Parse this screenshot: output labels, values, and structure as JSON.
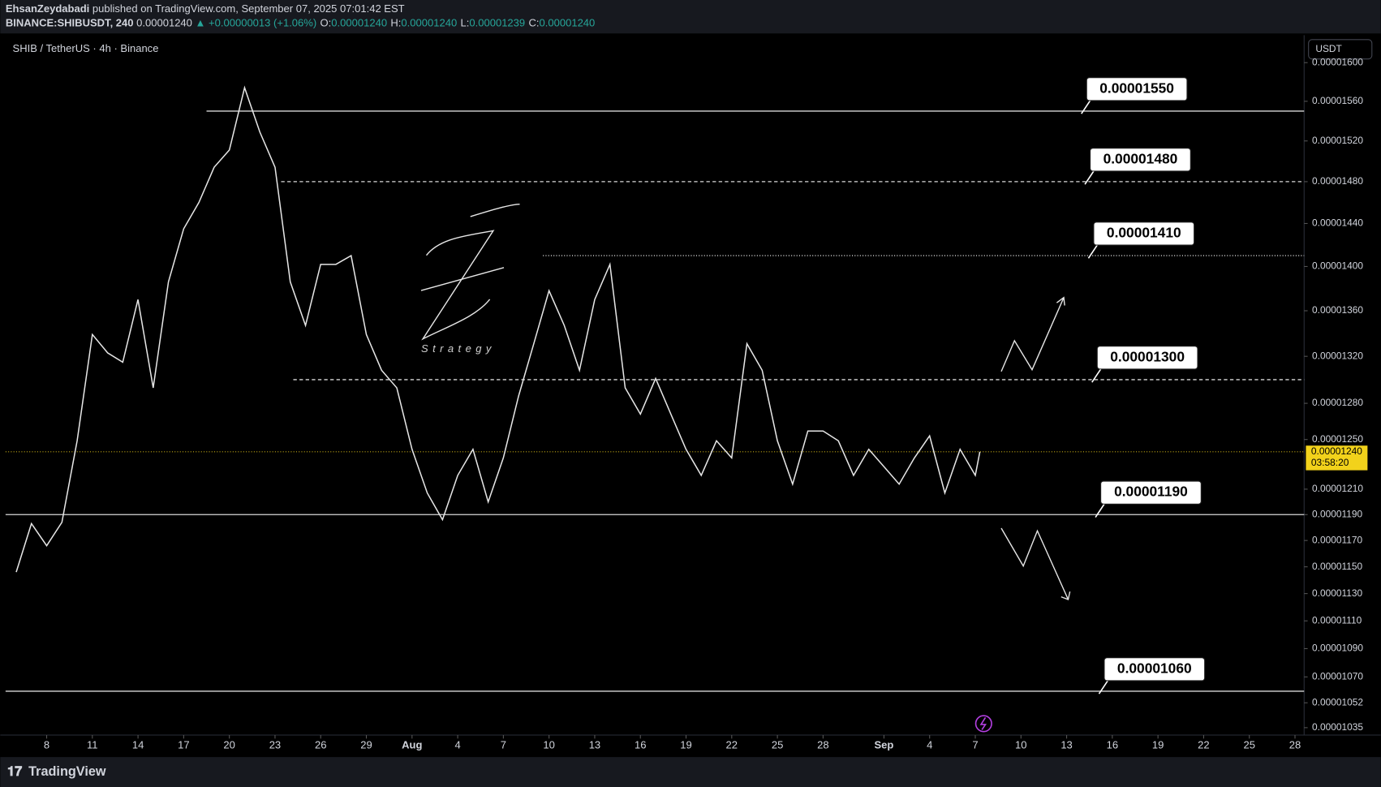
{
  "header": {
    "author": "EhsanZeydabadi",
    "published": "published on TradingView.com, September 07, 2025 07:01:42 EST",
    "symbol": "BINANCE:SHIBUSDT, 240",
    "last": "0.00001240",
    "change": "▲ +0.00000013 (+1.06%)",
    "ohlc": [
      "O:",
      "0.00001240",
      "H:",
      "0.00001240",
      "L:",
      "0.00001239",
      "C:",
      "0.00001240"
    ]
  },
  "footer": {
    "brand": "TradingView"
  },
  "chart_data": {
    "type": "line",
    "title": "SHIB / TetherUS · 4h · Binance",
    "currency": "USDT",
    "log_scale": true,
    "grid": false,
    "x": [
      -2,
      -1,
      0,
      1,
      2,
      3,
      4,
      5,
      6,
      7,
      8,
      9,
      10,
      11,
      12,
      13,
      14,
      15,
      16,
      17,
      18,
      19,
      20,
      21,
      22,
      23,
      24,
      25,
      26,
      27,
      28,
      29,
      30,
      31,
      32,
      33,
      34,
      35,
      36,
      37,
      38,
      39,
      40,
      41,
      42,
      43,
      44,
      45,
      46,
      47,
      48,
      49,
      50,
      51,
      52,
      53,
      54,
      55,
      56,
      57,
      58,
      59,
      60,
      61,
      61.3
    ],
    "series": [
      {
        "name": "SHIBUSDT",
        "color": "#e6e6e6",
        "values": [
          1.146e-05,
          1.183e-05,
          1.166e-05,
          1.184e-05,
          1.249e-05,
          1.339e-05,
          1.323e-05,
          1.315e-05,
          1.37e-05,
          1.293e-05,
          1.386e-05,
          1.435e-05,
          1.46e-05,
          1.494e-05,
          1.511e-05,
          1.574e-05,
          1.529e-05,
          1.494e-05,
          1.386e-05,
          1.347e-05,
          1.402e-05,
          1.402e-05,
          1.41e-05,
          1.339e-05,
          1.308e-05,
          1.293e-05,
          1.242e-05,
          1.207e-05,
          1.186e-05,
          1.221e-05,
          1.242e-05,
          1.2e-05,
          1.235e-05,
          1.286e-05,
          1.331e-05,
          1.378e-05,
          1.347e-05,
          1.308e-05,
          1.37e-05,
          1.402e-05,
          1.293e-05,
          1.271e-05,
          1.301e-05,
          1.271e-05,
          1.242e-05,
          1.221e-05,
          1.249e-05,
          1.235e-05,
          1.331e-05,
          1.308e-05,
          1.249e-05,
          1.214e-05,
          1.257e-05,
          1.257e-05,
          1.249e-05,
          1.221e-05,
          1.242e-05,
          1.228e-05,
          1.214e-05,
          1.235e-05,
          1.253e-05,
          1.207e-05,
          1.242e-05,
          1.221e-05,
          1.24e-05
        ]
      }
    ],
    "xlim": [
      -2.7,
      82.6
    ],
    "xticks": [
      {
        "value": 0,
        "label": "8"
      },
      {
        "value": 3,
        "label": "11"
      },
      {
        "value": 6,
        "label": "14"
      },
      {
        "value": 9,
        "label": "17"
      },
      {
        "value": 12,
        "label": "20"
      },
      {
        "value": 15,
        "label": "23"
      },
      {
        "value": 18,
        "label": "26"
      },
      {
        "value": 21,
        "label": "29"
      },
      {
        "value": 24,
        "label": "Aug"
      },
      {
        "value": 27,
        "label": "4"
      },
      {
        "value": 30,
        "label": "7"
      },
      {
        "value": 33,
        "label": "10"
      },
      {
        "value": 36,
        "label": "13"
      },
      {
        "value": 39,
        "label": "16"
      },
      {
        "value": 42,
        "label": "19"
      },
      {
        "value": 45,
        "label": "22"
      },
      {
        "value": 48,
        "label": "25"
      },
      {
        "value": 51,
        "label": "28"
      },
      {
        "value": 55,
        "label": "Sep"
      },
      {
        "value": 58,
        "label": "4"
      },
      {
        "value": 61,
        "label": "7"
      },
      {
        "value": 64,
        "label": "10"
      },
      {
        "value": 67,
        "label": "13"
      },
      {
        "value": 70,
        "label": "16"
      },
      {
        "value": 73,
        "label": "19"
      },
      {
        "value": 76,
        "label": "22"
      },
      {
        "value": 79,
        "label": "25"
      },
      {
        "value": 82,
        "label": "28"
      }
    ],
    "ylim": [
      1.03e-05,
      1.629e-05
    ],
    "yticks": [
      {
        "value": 1.6e-05,
        "label": "0.00001600"
      },
      {
        "value": 1.56e-05,
        "label": "0.00001560"
      },
      {
        "value": 1.52e-05,
        "label": "0.00001520"
      },
      {
        "value": 1.48e-05,
        "label": "0.00001480"
      },
      {
        "value": 1.44e-05,
        "label": "0.00001440"
      },
      {
        "value": 1.4e-05,
        "label": "0.00001400"
      },
      {
        "value": 1.36e-05,
        "label": "0.00001360"
      },
      {
        "value": 1.32e-05,
        "label": "0.00001320"
      },
      {
        "value": 1.28e-05,
        "label": "0.00001280"
      },
      {
        "value": 1.25e-05,
        "label": "0.00001250"
      },
      {
        "value": 1.21e-05,
        "label": "0.00001210"
      },
      {
        "value": 1.19e-05,
        "label": "0.00001190"
      },
      {
        "value": 1.17e-05,
        "label": "0.00001170"
      },
      {
        "value": 1.15e-05,
        "label": "0.00001150"
      },
      {
        "value": 1.13e-05,
        "label": "0.00001130"
      },
      {
        "value": 1.11e-05,
        "label": "0.00001110"
      },
      {
        "value": 1.09e-05,
        "label": "0.00001090"
      },
      {
        "value": 1.07e-05,
        "label": "0.00001070"
      },
      {
        "value": 1.052e-05,
        "label": "0.00001052"
      },
      {
        "value": 1.035e-05,
        "label": "0.00001035"
      }
    ],
    "last_price": {
      "value": 1.24e-05,
      "label": "0.00001240",
      "countdown": "03:58:20",
      "color": "#f2d21b"
    },
    "levels": [
      {
        "value": 1.55e-05,
        "label": "0.00001550",
        "style": "solid",
        "from": 10.5
      },
      {
        "value": 1.48e-05,
        "label": "0.00001480",
        "style": "dashed",
        "from": 15.4
      },
      {
        "value": 1.41e-05,
        "label": "0.00001410",
        "style": "dotted",
        "from": 32.6
      },
      {
        "value": 1.3e-05,
        "label": "0.00001300",
        "style": "dashed",
        "from": 16.2
      },
      {
        "value": 1.19e-05,
        "label": "0.00001190",
        "style": "solid",
        "from": -2.7
      },
      {
        "value": 1.06e-05,
        "label": "0.00001060",
        "style": "solid",
        "from": -2.7
      }
    ],
    "watermark": "Strategy"
  }
}
